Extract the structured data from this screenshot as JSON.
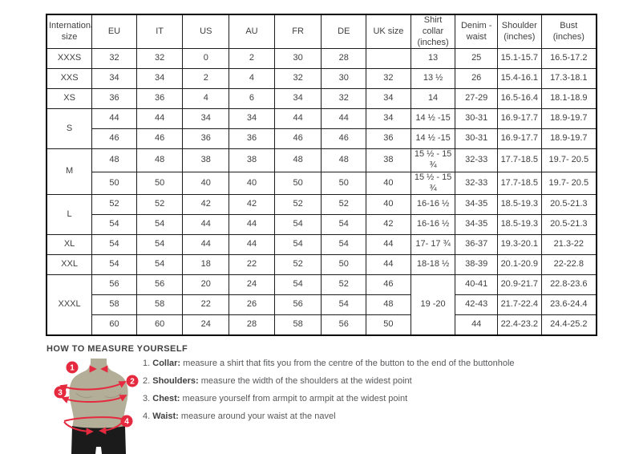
{
  "colors": {
    "accent_red": "#e5293e",
    "mannequin_tan": "#b3ae98",
    "shorts_black": "#1b1b1b",
    "table_border": "#000000",
    "table_text": "#3f3f3f"
  },
  "size_table": {
    "columns": [
      "International size",
      "EU",
      "IT",
      "US",
      "AU",
      "FR",
      "DE",
      "UK size",
      "Shirt collar (inches)",
      "Denim - waist",
      "Shoulder (inches)",
      "Bust (inches)"
    ],
    "groups": [
      {
        "label": "XXXS",
        "rows": [
          [
            "32",
            "32",
            "0",
            "2",
            "30",
            "28",
            "",
            "13",
            "25",
            "15.1-15.7",
            "16.5-17.2"
          ]
        ]
      },
      {
        "label": "XXS",
        "rows": [
          [
            "34",
            "34",
            "2",
            "4",
            "32",
            "30",
            "32",
            "13 ½",
            "26",
            "15.4-16.1",
            "17.3-18.1"
          ]
        ]
      },
      {
        "label": "XS",
        "rows": [
          [
            "36",
            "36",
            "4",
            "6",
            "34",
            "32",
            "34",
            "14",
            "27-29",
            "16.5-16.4",
            "18.1-18.9"
          ]
        ]
      },
      {
        "label": "S",
        "rows": [
          [
            "44",
            "44",
            "34",
            "34",
            "44",
            "44",
            "34",
            "14 ½ -15",
            "30-31",
            "16.9-17.7",
            "18.9-19.7"
          ],
          [
            "46",
            "46",
            "36",
            "36",
            "46",
            "46",
            "36",
            "14 ½ -15",
            "30-31",
            "16.9-17.7",
            "18.9-19.7"
          ]
        ]
      },
      {
        "label": "M",
        "rows": [
          [
            "48",
            "48",
            "38",
            "38",
            "48",
            "48",
            "38",
            "15 ½ - 15 ¾",
            "32-33",
            "17.7-18.5",
            "19.7- 20.5"
          ],
          [
            "50",
            "50",
            "40",
            "40",
            "50",
            "50",
            "40",
            "15 ½ - 15 ¾",
            "32-33",
            "17.7-18.5",
            "19.7- 20.5"
          ]
        ]
      },
      {
        "label": "L",
        "rows": [
          [
            "52",
            "52",
            "42",
            "42",
            "52",
            "52",
            "40",
            "16-16 ½",
            "34-35",
            "18.5-19.3",
            "20.5-21.3"
          ],
          [
            "54",
            "54",
            "44",
            "44",
            "54",
            "54",
            "42",
            "16-16 ½",
            "34-35",
            "18.5-19.3",
            "20.5-21.3"
          ]
        ]
      },
      {
        "label": "XL",
        "rows": [
          [
            "54",
            "54",
            "44",
            "44",
            "54",
            "54",
            "44",
            "17- 17 ¾",
            "36-37",
            "19.3-20.1",
            "21.3-22"
          ]
        ]
      },
      {
        "label": "XXL",
        "rows": [
          [
            "54",
            "54",
            "18",
            "22",
            "52",
            "50",
            "44",
            "18-18 ½",
            "38-39",
            "20.1-20.9",
            "22-22.8"
          ]
        ]
      },
      {
        "label": "XXXL",
        "spans": {
          "7": 3
        },
        "rows": [
          [
            "56",
            "56",
            "20",
            "24",
            "54",
            "52",
            "46",
            "19 -20",
            "40-41",
            "20.9-21.7",
            "22.8-23.6"
          ],
          [
            "58",
            "58",
            "22",
            "26",
            "56",
            "54",
            "48",
            null,
            "42-43",
            "21.7-22.4",
            "23.6-24.4"
          ],
          [
            "60",
            "60",
            "24",
            "28",
            "58",
            "56",
            "50",
            null,
            "44",
            "22.4-23.2",
            "24.4-25.2"
          ]
        ]
      }
    ]
  },
  "measure_guide": {
    "title": "HOW TO MEASURE YOURSELF",
    "steps": [
      {
        "num": "1.",
        "label": "Collar:",
        "text": "measure a shirt that fits you from the centre of the button to the end of the buttonhole"
      },
      {
        "num": "2.",
        "label": "Shoulders:",
        "text": "measure the width of the shoulders at the widest point"
      },
      {
        "num": "3.",
        "label": "Chest:",
        "text": "measure yourself from armpit to armpit at the widest point"
      },
      {
        "num": "4.",
        "label": "Waist:",
        "text": "measure around your waist at the navel"
      }
    ],
    "markers": [
      "1",
      "2",
      "3",
      "4"
    ]
  }
}
